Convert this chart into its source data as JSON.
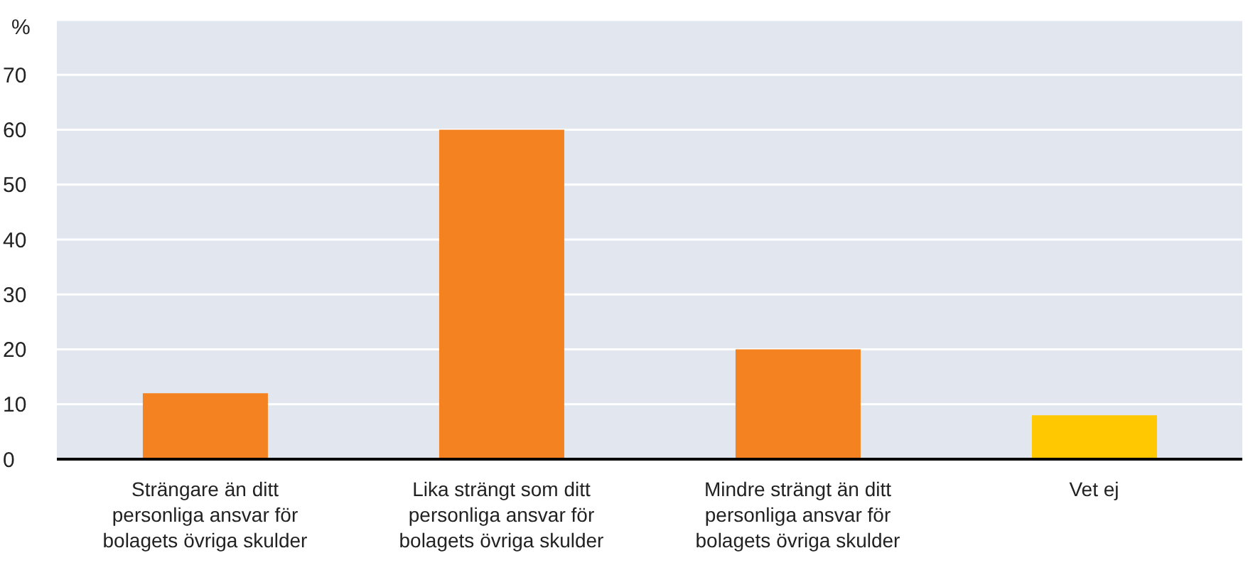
{
  "chart_data": {
    "type": "bar",
    "ylabel": "%",
    "categories": [
      "Strängare än ditt personliga ansvar för bolagets övriga skulder",
      "Lika strängt som ditt personliga ansvar för bolagets övriga skulder",
      "Mindre strängt än ditt personliga ansvar för bolagets övriga skulder",
      "Vet ej"
    ],
    "values": [
      12,
      60,
      20,
      8
    ],
    "colors": [
      "#f58220",
      "#f58220",
      "#f58220",
      "#ffc800"
    ],
    "ylim": [
      0,
      80
    ],
    "yticks": [
      0,
      10,
      20,
      30,
      40,
      50,
      60,
      70
    ],
    "grid": "y",
    "legend": false
  }
}
